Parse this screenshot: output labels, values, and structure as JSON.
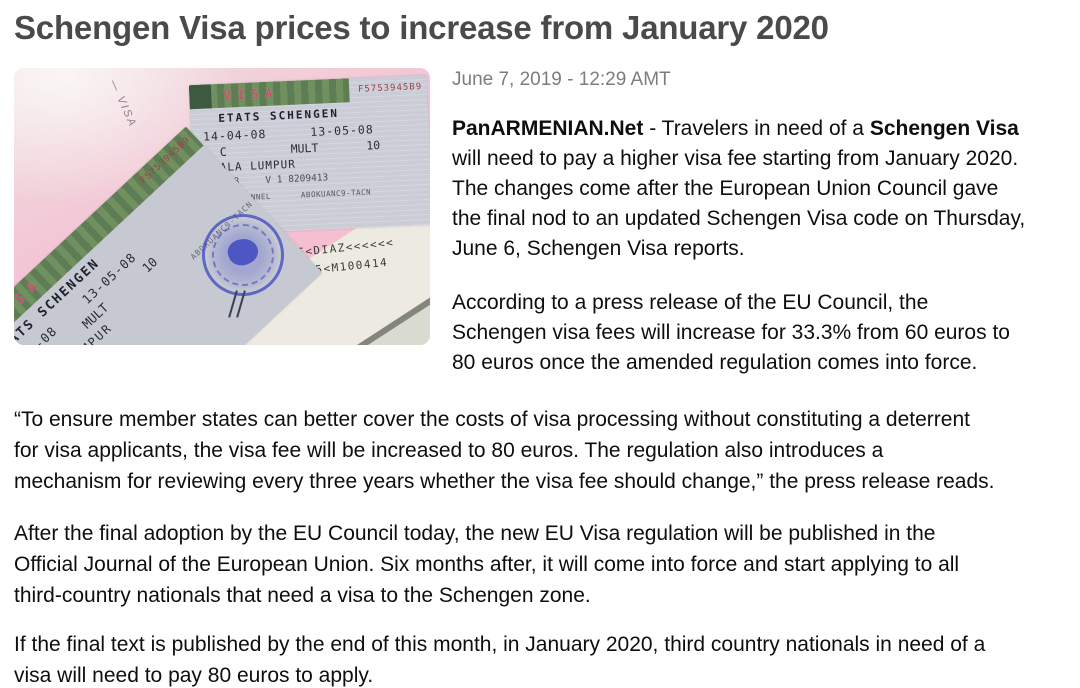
{
  "page": {
    "title": "Schengen Visa prices to increase from January 2020",
    "date": "June 7, 2019 - 12:29 AMT"
  },
  "colors": {
    "title_gray": "#4a4a4a",
    "date_gray": "#7d7d7d",
    "body_black": "#0e0e0e",
    "photo_pink": "#f4c3d4",
    "sticker_gray": "#cacdd6",
    "band_green": "#5e7d54",
    "visa_red": "#c5526a",
    "stamp_blue": "#3e49c2",
    "mrz_paper": "#edebe1"
  },
  "photo": {
    "alt": "Passport pages with Schengen visa stickers",
    "handwriting": "— VISA",
    "sticker": {
      "visa_label": "VISA",
      "serial": "F5753945B9",
      "header": "ETATS SCHENGEN",
      "date_from": "14-04-08",
      "date_to": "13-05-08",
      "type": "C",
      "entries": "MULT",
      "duration": "10",
      "city": "KUALA LUMPUR",
      "issued": "-03-08",
      "small_numbers": "V 1 8209413",
      "small_1": "FROFERZIONNEL",
      "small_2": "ABOKUANC9-TACN"
    },
    "mrz_line_1": "E<DIAZ<<<<<<",
    "mrz_line_2": "135<M100414"
  },
  "article": {
    "p1": {
      "l1_bold1": "PanARMENIAN.Net",
      "l1_mid": " - Travelers in need of a ",
      "l1_bold2": "Schengen Visa",
      "l2": "will need to pay a higher visa fee starting from January 2020.",
      "l3": "The changes come after the European Union Council gave",
      "l4": "the final nod to an updated Schengen Visa code on Thursday,",
      "l5": "June 6, Schengen Visa reports."
    },
    "p2": {
      "l1": "According to a press release of the EU Council, the",
      "l2": "Schengen visa fees will increase for 33.3% from 60 euros to",
      "l3": "80 euros once the amended regulation comes into force."
    },
    "p3": {
      "l1": "“To ensure member states can better cover the costs of visa processing without constituting a deterrent",
      "l2": "for visa applicants, the visa fee will be increased to 80 euros. The regulation also introduces a",
      "l3": "mechanism for reviewing every three years whether the visa fee should change,” the press release reads."
    },
    "p4": {
      "l1": "After the final adoption by the EU Council today, the new EU Visa regulation will be published in the",
      "l2": "Official Journal of the European Union. Six months after, it will come into force and start applying to all",
      "l3": "third-country nationals that need a visa to the Schengen zone."
    },
    "p5": {
      "l1": "If the final text is published by the end of this month, in January 2020, third country nationals in need of a",
      "l2": "visa will need to pay 80 euros to apply."
    }
  }
}
